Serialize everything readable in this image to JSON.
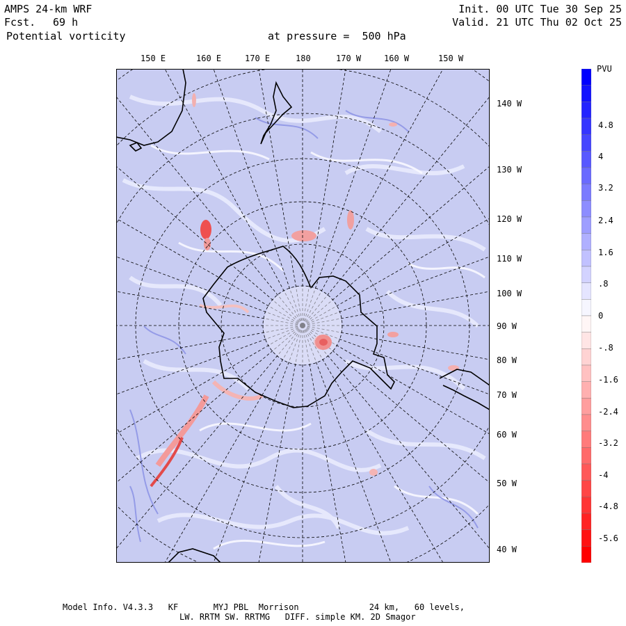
{
  "header": {
    "model": "AMPS 24-km WRF",
    "fcst_label": "Fcst.",
    "fcst_value": "69 h",
    "field": "Potential vorticity",
    "level": "at pressure =  500 hPa",
    "init": "Init. 00 UTC Tue 30 Sep 25",
    "valid": "Valid. 21 UTC Thu 02 Oct 25"
  },
  "top_longitudes": [
    "150 E",
    "160 E",
    "170 E",
    "180",
    "170 W",
    "160 W",
    "150 W"
  ],
  "right_longitudes": [
    "140 W",
    "130 W",
    "120 W",
    "110 W",
    "100 W",
    "90 W",
    "80 W",
    "70 W",
    "60 W",
    "50 W",
    "40 W"
  ],
  "colorbar": {
    "unit": "PVU",
    "labels": [
      "4.8",
      "4",
      "3.2",
      "2.4",
      "1.6",
      ".8",
      "0",
      "-.8",
      "-1.6",
      "-2.4",
      "-3.2",
      "-4",
      "-4.8",
      "-5.6"
    ],
    "high_color": "#0000ff",
    "low_color": "#ff0000"
  },
  "footer": {
    "line1": "Model Info. V4.3.3   KF       MYJ PBL  Morrison              24 km,   60 levels,",
    "line2": "LW. RRTM SW. RRTMG   DIFF. simple KM. 2D Smagor"
  }
}
